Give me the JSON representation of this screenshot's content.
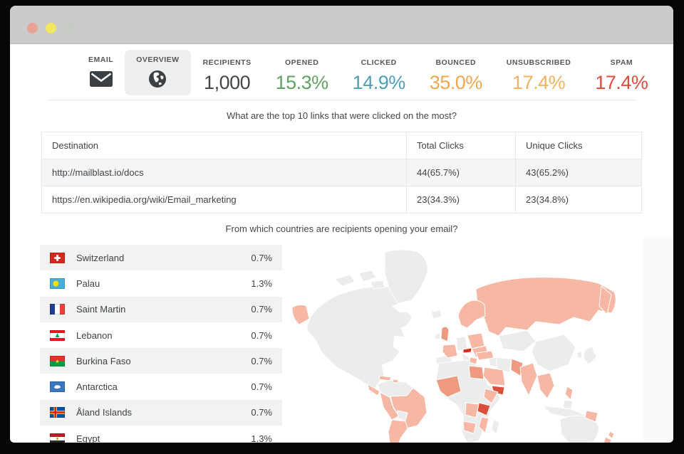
{
  "window": {
    "traffic_lights": [
      "close",
      "minimize",
      "maximize"
    ]
  },
  "header": {
    "tabs": [
      {
        "label": "EMAIL",
        "icon": "envelope-icon",
        "selected": false
      },
      {
        "label": "OVERVIEW",
        "icon": "globe-icon",
        "selected": true
      }
    ],
    "stats": [
      {
        "label": "RECIPIENTS",
        "value": "1,000",
        "color": "#42474c"
      },
      {
        "label": "OPENED",
        "value": "15.3%",
        "color": "#5fa463"
      },
      {
        "label": "CLICKED",
        "value": "14.9%",
        "color": "#4d9fba"
      },
      {
        "label": "BOUNCED",
        "value": "35.0%",
        "color": "#f0a84f"
      },
      {
        "label": "UNSUBSCRIBED",
        "value": "17.4%",
        "color": "#f2b35c"
      },
      {
        "label": "SPAM",
        "value": "17.4%",
        "color": "#e14b3c"
      }
    ]
  },
  "links_section": {
    "question": "What are the top 10 links that were clicked on the most?",
    "table": {
      "headers": [
        "Destination",
        "Total Clicks",
        "Unique Clicks"
      ],
      "rows": [
        {
          "destination": "http://mailblast.io/docs",
          "total_clicks": "44(65.7%)",
          "unique_clicks": "43(65.2%)"
        },
        {
          "destination": "https://en.wikipedia.org/wiki/Email_marketing",
          "total_clicks": "23(34.3%)",
          "unique_clicks": "23(34.8%)"
        }
      ]
    }
  },
  "countries_section": {
    "question": "From which countries are recipients opening your email?",
    "countries": [
      {
        "name": "Switzerland",
        "percent": "0.7%",
        "flag": "ch"
      },
      {
        "name": "Palau",
        "percent": "1.3%",
        "flag": "pw"
      },
      {
        "name": "Saint Martin",
        "percent": "0.7%",
        "flag": "mf"
      },
      {
        "name": "Lebanon",
        "percent": "0.7%",
        "flag": "lb"
      },
      {
        "name": "Burkina Faso",
        "percent": "0.7%",
        "flag": "bf"
      },
      {
        "name": "Antarctica",
        "percent": "0.7%",
        "flag": "aq"
      },
      {
        "name": "Åland Islands",
        "percent": "0.7%",
        "flag": "ax"
      },
      {
        "name": "Egypt",
        "percent": "1.3%",
        "flag": "eg"
      }
    ],
    "map_palette": {
      "land": "#ececec",
      "low": "#f6b7a5",
      "mid": "#ee9a7f",
      "high": "#d9503a",
      "max": "#e2261a",
      "border": "#ffffff"
    }
  }
}
